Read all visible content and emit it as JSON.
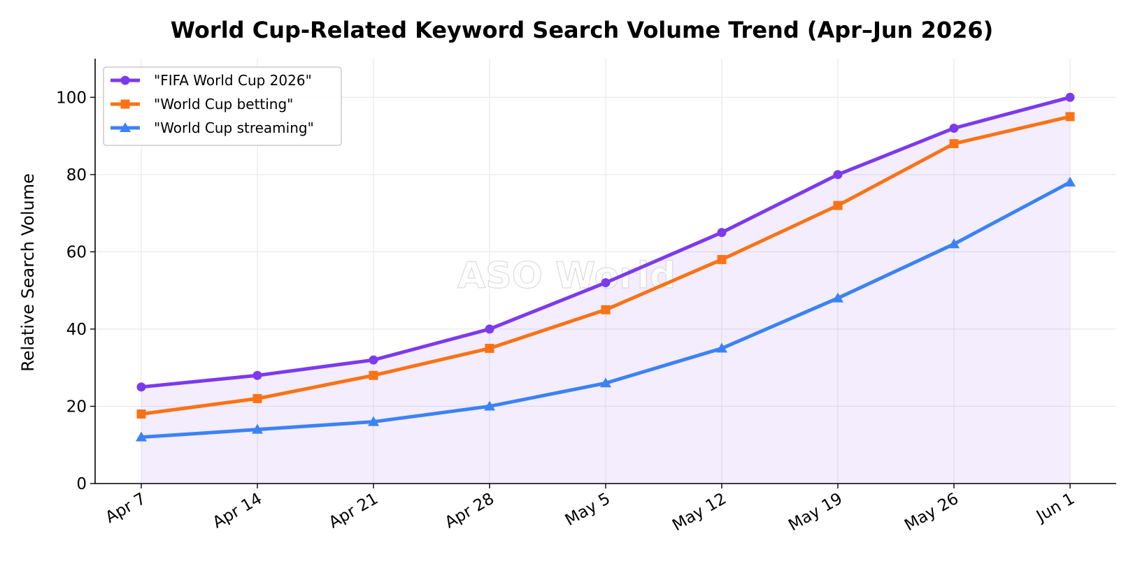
{
  "watermark": "ASO World",
  "chart_data": {
    "type": "line",
    "title": "World Cup-Related Keyword Search Volume Trend (Apr–Jun 2026)",
    "xlabel": "",
    "ylabel": "Relative Search Volume",
    "categories": [
      "Apr 7",
      "Apr 14",
      "Apr 21",
      "Apr 28",
      "May 5",
      "May 12",
      "May 19",
      "May 26",
      "Jun 1"
    ],
    "ylim": [
      0,
      110
    ],
    "yticks": [
      0,
      20,
      40,
      60,
      80,
      100
    ],
    "grid": true,
    "legend": "top-left",
    "fill_under": "\"FIFA World Cup 2026\"",
    "series": [
      {
        "name": "\"FIFA World Cup 2026\"",
        "values": [
          25,
          28,
          32,
          40,
          52,
          65,
          80,
          92,
          100
        ],
        "color": "#7c3aed",
        "marker": "circle"
      },
      {
        "name": "\"World Cup betting\"",
        "values": [
          18,
          22,
          28,
          35,
          45,
          58,
          72,
          88,
          95
        ],
        "color": "#f97316",
        "marker": "square"
      },
      {
        "name": "\"World Cup streaming\"",
        "values": [
          12,
          14,
          16,
          20,
          26,
          35,
          48,
          62,
          78
        ],
        "color": "#3b82f6",
        "marker": "triangle"
      }
    ]
  }
}
